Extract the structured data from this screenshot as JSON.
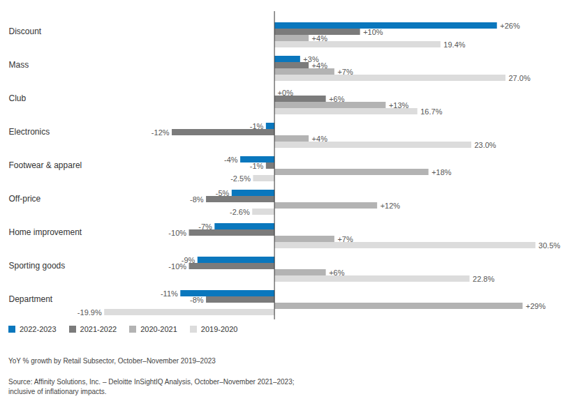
{
  "chart_data": {
    "type": "bar",
    "orientation": "horizontal",
    "caption": "YoY % growth by Retail Subsector, October–November 2019–2023",
    "source": [
      "Source: Affinity Solutions, Inc. – Deloitte InSightIQ Analysis, October–November 2021–2023;",
      "inclusive of inflationary impacts."
    ],
    "categories": [
      "Discount",
      "Mass",
      "Club",
      "Electronics",
      "Footwear & apparel",
      "Off-price",
      "Home improvement",
      "Sporting goods",
      "Department"
    ],
    "series": [
      {
        "name": "2022-2023",
        "color": "#0a77bd",
        "values": [
          26,
          3,
          0,
          -1,
          -4,
          -5,
          -7,
          -9,
          -11
        ],
        "value_labels": [
          "+26%",
          "+3%",
          "+0%",
          "-1%",
          "-4%",
          "-5%",
          "-7%",
          "-9%",
          "-11%"
        ]
      },
      {
        "name": "2021-2022",
        "color": "#7b7b7b",
        "values": [
          10,
          4,
          6,
          -12,
          -1,
          -8,
          -10,
          -10,
          -8
        ],
        "value_labels": [
          "+10%",
          "+4%",
          "+6%",
          "-12%",
          "-1%",
          "-8%",
          "-10%",
          "-10%",
          "-8%"
        ]
      },
      {
        "name": "2020-2021",
        "color": "#b3b3b3",
        "values": [
          4,
          7,
          13,
          4,
          18,
          12,
          7,
          6,
          29
        ],
        "value_labels": [
          "+4%",
          "+7%",
          "+13%",
          "+4%",
          "+18%",
          "+12%",
          "+7%",
          "+6%",
          "+29%"
        ]
      },
      {
        "name": "2019-2020",
        "color": "#dcdcdc",
        "values": [
          19.4,
          27.0,
          16.7,
          23.0,
          -2.5,
          -2.6,
          30.5,
          22.8,
          -19.9
        ],
        "value_labels": [
          "19.4%",
          "27.0%",
          "16.7%",
          "23.0%",
          "-2.5%",
          "-2.6%",
          "30.5%",
          "22.8%",
          "-19.9%"
        ]
      }
    ],
    "xlim": [
      -20,
      31
    ],
    "xticks": [
      0
    ],
    "tick_labels": false,
    "data_labels": true,
    "legend": "bottom-left"
  }
}
